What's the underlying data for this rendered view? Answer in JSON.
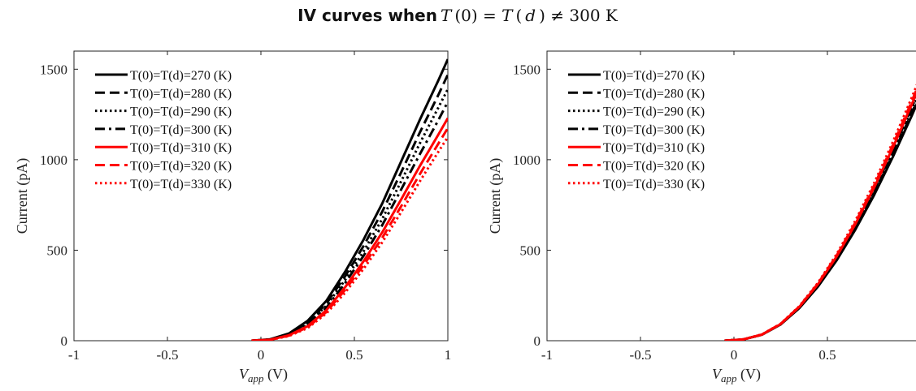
{
  "figure": {
    "title_bold": "IV curves when",
    "title_math": [
      "T",
      "(0) = ",
      "T",
      "(",
      "d",
      ") ≠ 300 K"
    ]
  },
  "chart_data": [
    {
      "type": "line",
      "title": "",
      "xlabel": "V_app (V)",
      "xlabel_main": "V",
      "xlabel_sub": "app",
      "xlabel_unit": " (V)",
      "ylabel": "Current (pA)",
      "xlim": [
        -1,
        1
      ],
      "ylim": [
        0,
        1600
      ],
      "xticks": [
        -1,
        -0.5,
        0,
        0.5,
        1
      ],
      "xtick_labels": [
        "-1",
        "-0.5",
        "0",
        "0.5",
        "1"
      ],
      "yticks": [
        0,
        500,
        1000,
        1500
      ],
      "ytick_labels": [
        "0",
        "500",
        "1000",
        "1500"
      ],
      "grid": false,
      "legend_position": "top-left",
      "x": [
        -0.05,
        0.05,
        0.15,
        0.25,
        0.35,
        0.45,
        0.55,
        0.65,
        0.75,
        0.85,
        0.95,
        1.0
      ],
      "series": [
        {
          "name": "T(0)=T(d)=270 (K)",
          "color": "#000000",
          "dash": "solid",
          "values": [
            0,
            8,
            40,
            110,
            220,
            380,
            560,
            760,
            990,
            1220,
            1440,
            1555
          ]
        },
        {
          "name": "T(0)=T(d)=280 (K)",
          "color": "#000000",
          "dash": "dashed",
          "values": [
            0,
            7,
            37,
            100,
            205,
            355,
            525,
            715,
            930,
            1150,
            1360,
            1470
          ]
        },
        {
          "name": "T(0)=T(d)=290 (K)",
          "color": "#000000",
          "dash": "dotted",
          "values": [
            0,
            7,
            35,
            94,
            193,
            335,
            495,
            675,
            880,
            1090,
            1290,
            1390
          ]
        },
        {
          "name": "T(0)=T(d)=300 (K)",
          "color": "#000000",
          "dash": "dashdot",
          "values": [
            0,
            6,
            33,
            88,
            182,
            318,
            470,
            640,
            835,
            1030,
            1220,
            1320
          ]
        },
        {
          "name": "T(0)=T(d)=310 (K)",
          "color": "#ff0000",
          "dash": "solid",
          "values": [
            0,
            6,
            30,
            80,
            168,
            295,
            440,
            600,
            780,
            965,
            1140,
            1230
          ]
        },
        {
          "name": "T(0)=T(d)=320 (K)",
          "color": "#ff0000",
          "dash": "dashed",
          "values": [
            0,
            5,
            28,
            75,
            158,
            280,
            418,
            570,
            742,
            920,
            1090,
            1175
          ]
        },
        {
          "name": "T(0)=T(d)=330 (K)",
          "color": "#ff0000",
          "dash": "dotted",
          "values": [
            0,
            5,
            26,
            70,
            150,
            265,
            398,
            545,
            710,
            880,
            1045,
            1125
          ]
        }
      ]
    },
    {
      "type": "line",
      "title": "",
      "xlabel": "V_app (V)",
      "xlabel_main": "V",
      "xlabel_sub": "app",
      "xlabel_unit": " (V)",
      "ylabel": "Current (pA)",
      "xlim": [
        -1,
        1
      ],
      "ylim": [
        0,
        1600
      ],
      "xticks": [
        -1,
        -0.5,
        0,
        0.5
      ],
      "xtick_labels": [
        "-1",
        "-0.5",
        "0",
        "0.5"
      ],
      "yticks": [
        0,
        500,
        1000,
        1500
      ],
      "ytick_labels": [
        "0",
        "500",
        "1000",
        "1500"
      ],
      "grid": false,
      "legend_position": "top-left",
      "x": [
        -0.05,
        0.05,
        0.15,
        0.25,
        0.35,
        0.45,
        0.55,
        0.65,
        0.75,
        0.85,
        0.95,
        1.0
      ],
      "series": [
        {
          "name": "T(0)=T(d)=270 (K)",
          "color": "#000000",
          "dash": "solid",
          "values": [
            0,
            7,
            33,
            90,
            180,
            300,
            445,
            615,
            805,
            1015,
            1240,
            1360
          ]
        },
        {
          "name": "T(0)=T(d)=280 (K)",
          "color": "#000000",
          "dash": "dashed",
          "values": [
            0,
            7,
            33,
            90,
            181,
            303,
            450,
            622,
            815,
            1028,
            1255,
            1375
          ]
        },
        {
          "name": "T(0)=T(d)=290 (K)",
          "color": "#000000",
          "dash": "dotted",
          "values": [
            0,
            7,
            33,
            91,
            183,
            306,
            455,
            630,
            825,
            1040,
            1270,
            1392
          ]
        },
        {
          "name": "T(0)=T(d)=300 (K)",
          "color": "#000000",
          "dash": "dashdot",
          "values": [
            0,
            7,
            34,
            91,
            185,
            309,
            460,
            637,
            835,
            1052,
            1285,
            1408
          ]
        },
        {
          "name": "T(0)=T(d)=310 (K)",
          "color": "#ff0000",
          "dash": "solid",
          "values": [
            0,
            7,
            34,
            92,
            187,
            313,
            466,
            645,
            846,
            1066,
            1302,
            1426
          ]
        },
        {
          "name": "T(0)=T(d)=320 (K)",
          "color": "#ff0000",
          "dash": "dashed",
          "values": [
            0,
            7,
            34,
            93,
            189,
            317,
            472,
            654,
            858,
            1081,
            1320,
            1446
          ]
        },
        {
          "name": "T(0)=T(d)=330 (K)",
          "color": "#ff0000",
          "dash": "dotted",
          "values": [
            0,
            7,
            35,
            94,
            191,
            321,
            479,
            664,
            871,
            1098,
            1340,
            1468
          ]
        }
      ]
    }
  ]
}
